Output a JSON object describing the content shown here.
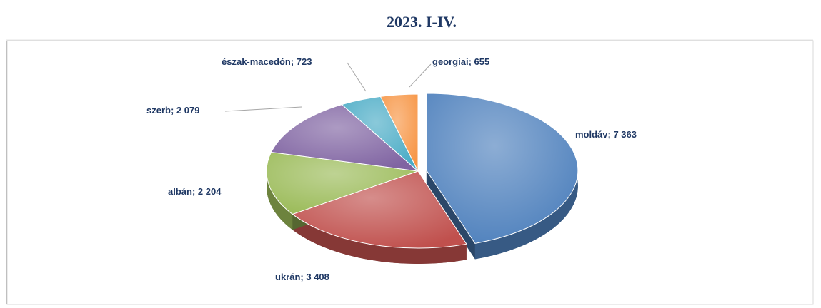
{
  "chart_data": {
    "type": "pie",
    "title": "2023. I-IV.",
    "categories": [
      "moldáv",
      "ukrán",
      "albán",
      "szerb",
      "észak-macedón",
      "georgiai"
    ],
    "values": [
      7363,
      3408,
      2204,
      2079,
      723,
      655
    ],
    "value_labels": [
      "7 363",
      "3 408",
      "2 204",
      "2 079",
      "723",
      "655"
    ],
    "label_separator": "; ",
    "colors": [
      "#4f81bd",
      "#c0504d",
      "#9bbb59",
      "#8064a2",
      "#4bacc6",
      "#f79646"
    ]
  }
}
